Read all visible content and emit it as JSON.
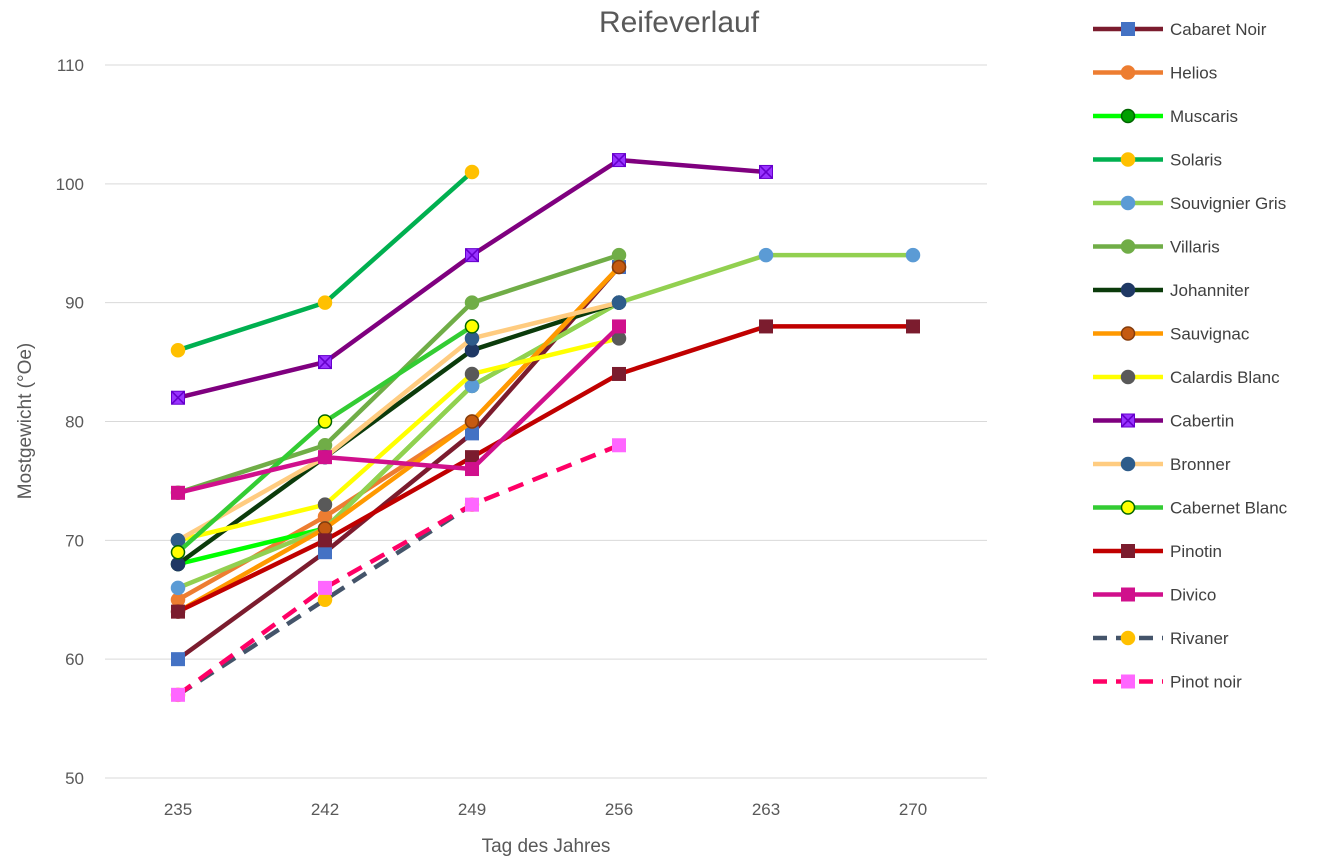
{
  "chart_data": {
    "type": "line",
    "title": "Reifeverlauf",
    "xlabel": "Tag des Jahres",
    "ylabel": "Mostgewicht (°Oe)",
    "categories": [
      "235",
      "242",
      "249",
      "256",
      "263",
      "270"
    ],
    "ylim": [
      50,
      110
    ],
    "yticks": [
      50,
      60,
      70,
      80,
      90,
      100,
      110
    ],
    "grid": true,
    "legend_position": "right",
    "series": [
      {
        "name": "Cabaret Noir",
        "values": [
          60,
          69,
          79,
          93,
          null,
          null
        ],
        "line_color": "#7B1C2E",
        "marker": "square",
        "marker_fill": "#4472C4",
        "marker_stroke": "#4472C4",
        "dashed": false
      },
      {
        "name": "Helios",
        "values": [
          65,
          72,
          80,
          93,
          null,
          null
        ],
        "line_color": "#ED7D31",
        "marker": "circle",
        "marker_fill": "#ED7D31",
        "marker_stroke": "#ED7D31",
        "dashed": false
      },
      {
        "name": "Muscaris",
        "values": [
          68,
          71,
          83,
          90,
          null,
          null
        ],
        "line_color": "#00FF00",
        "marker": "circle",
        "marker_fill": "#00A000",
        "marker_stroke": "#006400",
        "dashed": false
      },
      {
        "name": "Solaris",
        "values": [
          86,
          90,
          101,
          null,
          null,
          null
        ],
        "line_color": "#00B050",
        "marker": "circle",
        "marker_fill": "#FFC000",
        "marker_stroke": "#FFC000",
        "dashed": false
      },
      {
        "name": "Souvignier Gris",
        "values": [
          66,
          71,
          83,
          90,
          94,
          94
        ],
        "line_color": "#92D050",
        "marker": "circle",
        "marker_fill": "#5B9BD5",
        "marker_stroke": "#5B9BD5",
        "dashed": false
      },
      {
        "name": "Villaris",
        "values": [
          74,
          78,
          90,
          94,
          null,
          null
        ],
        "line_color": "#70AD47",
        "marker": "circle",
        "marker_fill": "#70AD47",
        "marker_stroke": "#70AD47",
        "dashed": false
      },
      {
        "name": "Johanniter",
        "values": [
          68,
          77,
          86,
          90,
          null,
          null
        ],
        "line_color": "#0B3B0B",
        "marker": "circle",
        "marker_fill": "#1F3864",
        "marker_stroke": "#1F3864",
        "dashed": false
      },
      {
        "name": "Sauvignac",
        "values": [
          64,
          71,
          80,
          93,
          null,
          null
        ],
        "line_color": "#FF9900",
        "marker": "circle",
        "marker_fill": "#C55A11",
        "marker_stroke": "#843C0C",
        "dashed": false
      },
      {
        "name": "Calardis Blanc",
        "values": [
          70,
          73,
          84,
          87,
          null,
          null
        ],
        "line_color": "#FFFF00",
        "marker": "circle",
        "marker_fill": "#595959",
        "marker_stroke": "#595959",
        "dashed": false
      },
      {
        "name": "Cabertin",
        "values": [
          82,
          85,
          94,
          102,
          101,
          null
        ],
        "line_color": "#7F007F",
        "marker": "xsquare",
        "marker_fill": "#9933FF",
        "marker_stroke": "#6600CC",
        "dashed": false
      },
      {
        "name": "Bronner",
        "values": [
          70,
          77,
          87,
          90,
          null,
          null
        ],
        "line_color": "#FFCC80",
        "marker": "circle",
        "marker_fill": "#2E5C8A",
        "marker_stroke": "#2E5C8A",
        "dashed": false
      },
      {
        "name": "Cabernet Blanc",
        "values": [
          69,
          80,
          88,
          null,
          null,
          null
        ],
        "line_color": "#33CC33",
        "marker": "circle",
        "marker_fill": "#FFFF00",
        "marker_stroke": "#006400",
        "dashed": false
      },
      {
        "name": "Pinotin",
        "values": [
          64,
          70,
          77,
          84,
          88,
          88
        ],
        "line_color": "#C00000",
        "marker": "square",
        "marker_fill": "#7B1C2E",
        "marker_stroke": "#7B1C2E",
        "dashed": false
      },
      {
        "name": "Divico",
        "values": [
          74,
          77,
          76,
          88,
          null,
          null
        ],
        "line_color": "#D0108C",
        "marker": "square",
        "marker_fill": "#D0108C",
        "marker_stroke": "#D0108C",
        "dashed": false
      },
      {
        "name": "Rivaner",
        "values": [
          57,
          65,
          73,
          null,
          null,
          null
        ],
        "line_color": "#44546A",
        "marker": "circle",
        "marker_fill": "#FFC000",
        "marker_stroke": "#FFC000",
        "dashed": true
      },
      {
        "name": "Pinot noir",
        "values": [
          57,
          66,
          73,
          78,
          null,
          null
        ],
        "line_color": "#FF0066",
        "marker": "square",
        "marker_fill": "#FF66FF",
        "marker_stroke": "#FF66FF",
        "dashed": true
      }
    ]
  }
}
